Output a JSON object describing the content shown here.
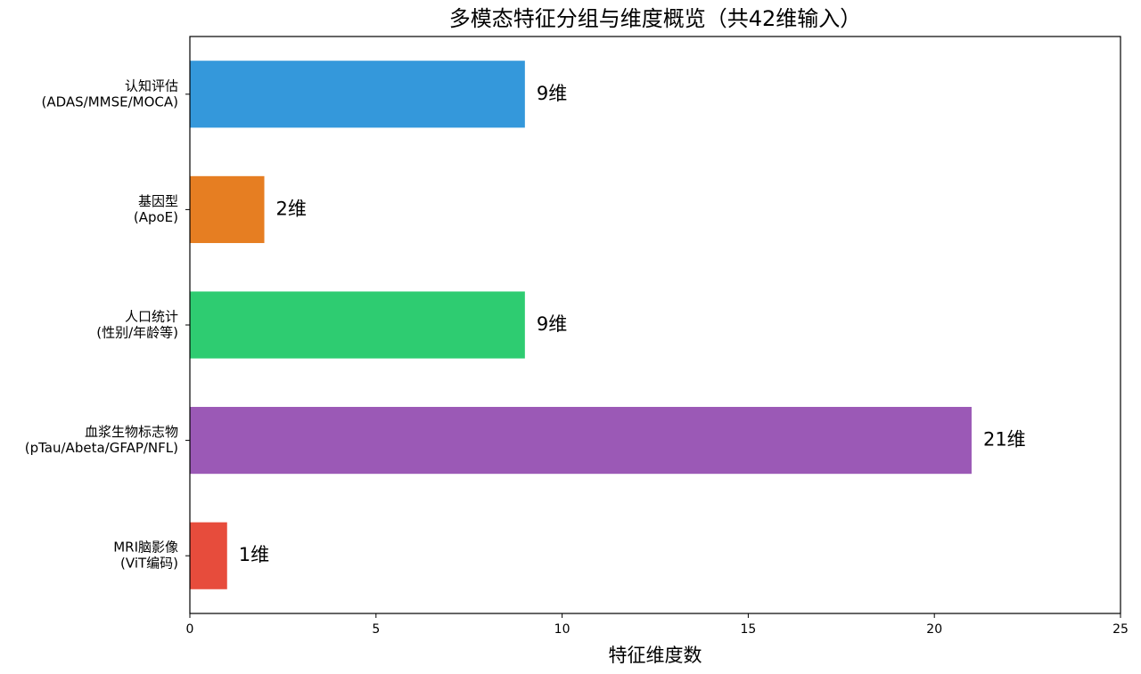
{
  "chart_data": {
    "type": "barh",
    "title": "多模态特征分组与维度概览（共42维输入）",
    "xlabel": "特征维度数",
    "categories": [
      [
        "认知评估",
        "(ADAS/MMSE/MOCA)"
      ],
      [
        "基因型",
        "(ApoE)"
      ],
      [
        "人口统计",
        "(性别/年龄等)"
      ],
      [
        "血浆生物标志物",
        "(pTau/Abeta/GFAP/NFL)"
      ],
      [
        "MRI脑影像",
        "(ViT编码)"
      ]
    ],
    "values": [
      9,
      2,
      9,
      21,
      1
    ],
    "value_labels": [
      "9维",
      "2维",
      "9维",
      "21维",
      "1维"
    ],
    "colors": [
      "#3498db",
      "#e67e22",
      "#2ecc71",
      "#9b59b6",
      "#e74c3c"
    ],
    "xlim": [
      0,
      25
    ],
    "xticks": [
      0,
      5,
      10,
      15,
      20,
      25
    ],
    "grid": false
  }
}
